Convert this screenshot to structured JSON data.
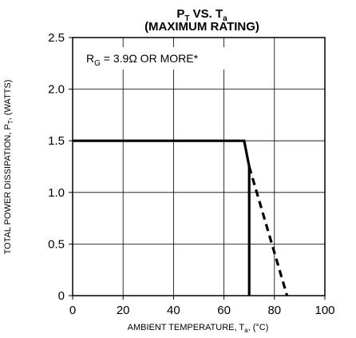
{
  "chart_data": {
    "type": "line",
    "title": {
      "main": "P",
      "sub": "T",
      "mid": " VS. T",
      "sub2": "a"
    },
    "subtitle": "(MAXIMUM RATING)",
    "xlabel": {
      "pre": "AMBIENT TEMPERATURE, T",
      "sub": "a",
      "post": ", (°C)"
    },
    "ylabel": {
      "pre": "TOTAL POWER DISSIPATION, P",
      "sub": "T",
      "post": ", (WATTS)"
    },
    "xlim": [
      0,
      100
    ],
    "ylim": [
      0,
      2.5
    ],
    "x_ticks": [
      "0",
      "20",
      "40",
      "60",
      "80",
      "100"
    ],
    "y_ticks": [
      "0",
      "0.5",
      "1.0",
      "1.5",
      "2.0",
      "2.5"
    ],
    "grid": true,
    "annotation": {
      "pre": "R",
      "sub": "G",
      "post": " = 3.9Ω OR MORE*"
    },
    "series": [
      {
        "style": "solid",
        "x": [
          0,
          68,
          70,
          70
        ],
        "y": [
          1.5,
          1.5,
          1.25,
          0
        ]
      },
      {
        "style": "dashed",
        "x": [
          70,
          85
        ],
        "y": [
          1.25,
          0
        ]
      }
    ]
  }
}
